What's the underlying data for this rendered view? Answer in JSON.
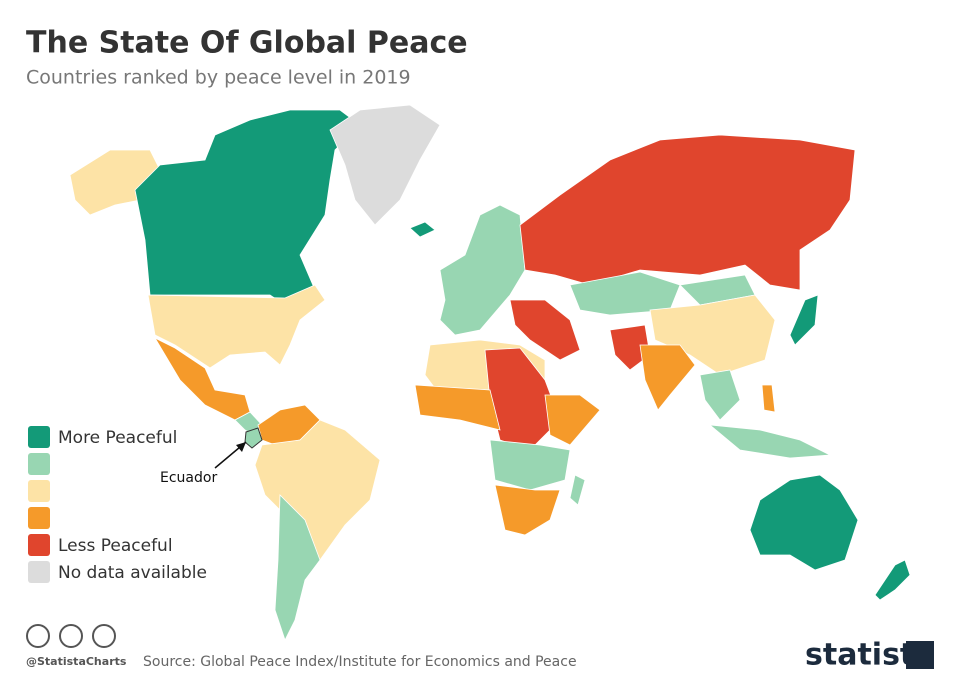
{
  "header": {
    "title": "The State Of Global Peace",
    "subtitle": "Countries ranked by peace level in 2019"
  },
  "legend": {
    "items": [
      {
        "color": "#139a78",
        "label": "More Peaceful"
      },
      {
        "color": "#98d6b2"
      },
      {
        "color": "#fde3a6"
      },
      {
        "color": "#f59a2a"
      },
      {
        "color": "#e0452d",
        "label": "Less Peaceful"
      },
      {
        "color": "#dcdcdc",
        "label": "No data available"
      }
    ]
  },
  "annotation": {
    "label": "Ecuador"
  },
  "footer": {
    "handle": "@StatistaCharts",
    "source": "Source: Global Peace Index/Institute for Economics and Peace",
    "brand": "statista"
  }
}
